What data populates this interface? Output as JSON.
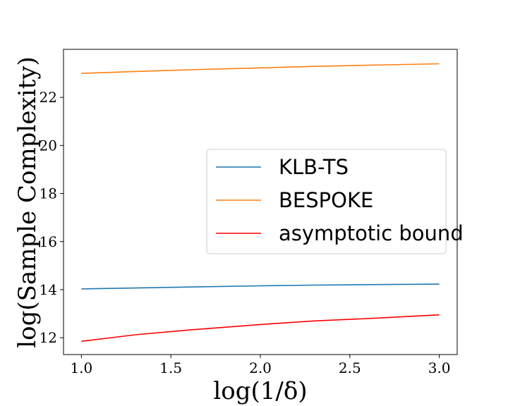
{
  "chart_data": {
    "type": "line",
    "xlabel": "log(1/δ)",
    "ylabel": "log(Sample Complexity)",
    "xlim": [
      0.9,
      3.1
    ],
    "ylim": [
      11.3,
      24.0
    ],
    "xticks": [
      1.0,
      1.5,
      2.0,
      2.5,
      3.0
    ],
    "xtick_labels": [
      "1.0",
      "1.5",
      "2.0",
      "2.5",
      "3.0"
    ],
    "yticks": [
      12,
      14,
      16,
      18,
      20,
      22
    ],
    "ytick_labels": [
      "12",
      "14",
      "16",
      "18",
      "20",
      "22"
    ],
    "grid": false,
    "legend_position": "center-right",
    "x": [
      1.0,
      1.3,
      1.6,
      2.0,
      2.3,
      2.6,
      3.0
    ],
    "series": [
      {
        "name": "KLB-TS",
        "color": "#1f77b4",
        "values": [
          14.03,
          14.07,
          14.11,
          14.16,
          14.19,
          14.21,
          14.23
        ]
      },
      {
        "name": "BESPOKE",
        "color": "#ff7f0e",
        "values": [
          23.0,
          23.08,
          23.15,
          23.23,
          23.29,
          23.34,
          23.4
        ]
      },
      {
        "name": "asymptotic bound",
        "color": "#ff0000",
        "values": [
          11.85,
          12.12,
          12.32,
          12.55,
          12.7,
          12.8,
          12.95
        ]
      }
    ]
  }
}
